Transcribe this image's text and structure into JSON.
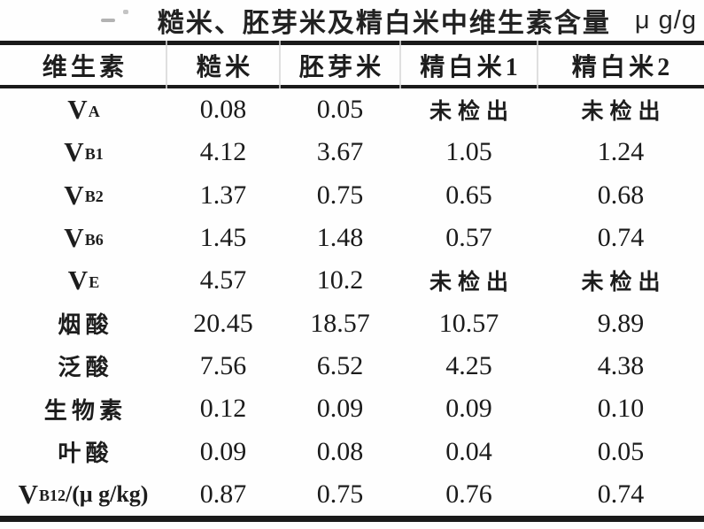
{
  "page": {
    "title": "糙米、胚芽米及精白米中维生素含量",
    "unit": "μ g/g"
  },
  "table": {
    "columns": [
      "维生素",
      "糙米",
      "胚芽米",
      "精白米1",
      "精白米2"
    ],
    "not_detected_label": "未检出",
    "rows": [
      {
        "label": {
          "main": "V",
          "sub": "A",
          "suffix": ""
        },
        "values": [
          "0.08",
          "0.05",
          "未检出",
          "未检出"
        ]
      },
      {
        "label": {
          "main": "V",
          "sub": "B1",
          "suffix": ""
        },
        "values": [
          "4.12",
          "3.67",
          "1.05",
          "1.24"
        ]
      },
      {
        "label": {
          "main": "V",
          "sub": "B2",
          "suffix": ""
        },
        "values": [
          "1.37",
          "0.75",
          "0.65",
          "0.68"
        ]
      },
      {
        "label": {
          "main": "V",
          "sub": "B6",
          "suffix": ""
        },
        "values": [
          "1.45",
          "1.48",
          "0.57",
          "0.74"
        ]
      },
      {
        "label": {
          "main": "V",
          "sub": "E",
          "suffix": ""
        },
        "values": [
          "4.57",
          "10.2",
          "未检出",
          "未检出"
        ]
      },
      {
        "label": {
          "main": "烟酸",
          "sub": "",
          "suffix": ""
        },
        "values": [
          "20.45",
          "18.57",
          "10.57",
          "9.89"
        ]
      },
      {
        "label": {
          "main": "泛酸",
          "sub": "",
          "suffix": ""
        },
        "values": [
          "7.56",
          "6.52",
          "4.25",
          "4.38"
        ]
      },
      {
        "label": {
          "main": "生物素",
          "sub": "",
          "suffix": ""
        },
        "values": [
          "0.12",
          "0.09",
          "0.09",
          "0.10"
        ]
      },
      {
        "label": {
          "main": "叶酸",
          "sub": "",
          "suffix": ""
        },
        "values": [
          "0.09",
          "0.08",
          "0.04",
          "0.05"
        ]
      },
      {
        "label": {
          "main": "V",
          "sub": "B12",
          "suffix": "/(μ g/kg)"
        },
        "values": [
          "0.87",
          "0.75",
          "0.76",
          "0.74"
        ]
      }
    ]
  }
}
